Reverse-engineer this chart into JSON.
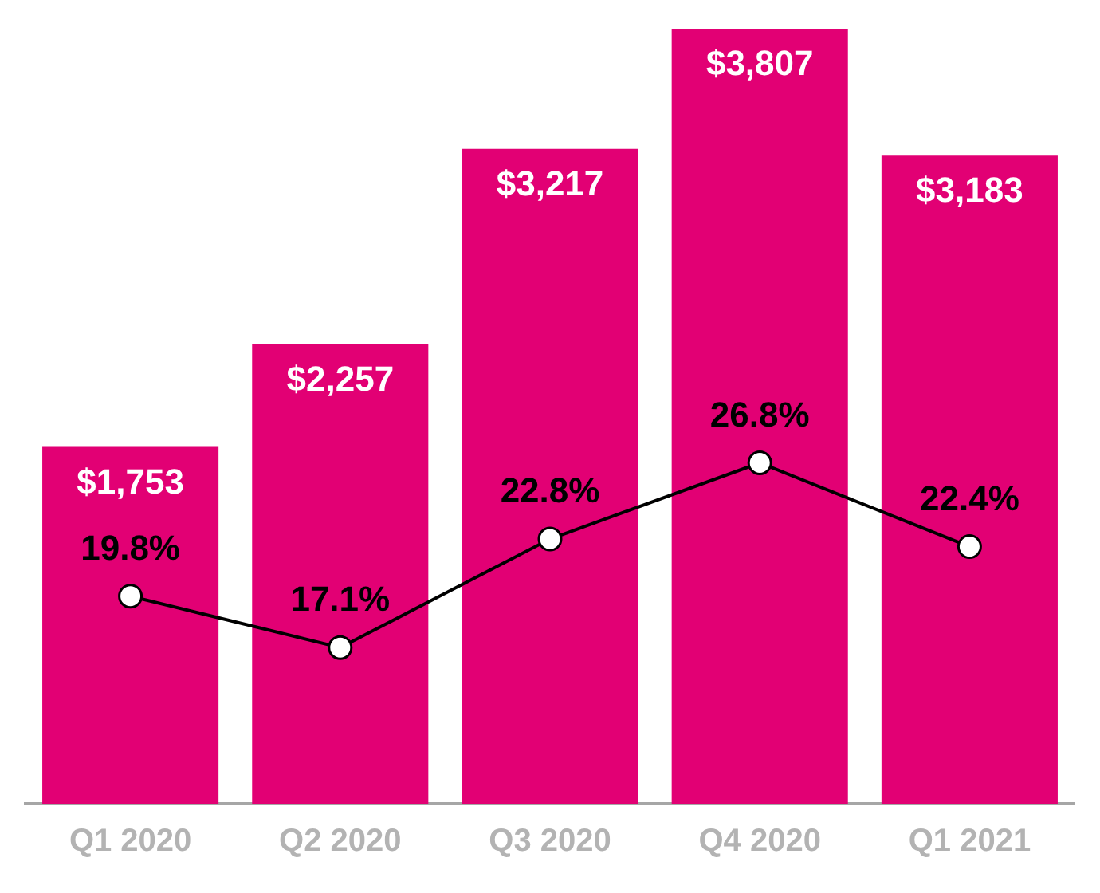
{
  "chart_data": {
    "type": "bar",
    "categories": [
      "Q1 2020",
      "Q2 2020",
      "Q3 2020",
      "Q4 2020",
      "Q1 2021"
    ],
    "series": [
      {
        "color": "#e20074",
        "values": [
          1753,
          2257,
          3217,
          3807,
          3183
        ],
        "value_labels": [
          "$1,753",
          "$2,257",
          "$3,217",
          "$3,807",
          "$3,183"
        ]
      },
      {
        "type": "line",
        "axis": "y2",
        "color": "#000000",
        "values": [
          19.8,
          17.1,
          22.8,
          26.8,
          22.4
        ],
        "value_labels": [
          "19.8%",
          "17.1%",
          "22.8%",
          "26.8%",
          "22.4%"
        ]
      }
    ],
    "ylim": [
      0,
      3807
    ],
    "y2lim": [
      8.9,
      49.6
    ],
    "tick_labels": "x",
    "marker": "circle",
    "line_style": "solid",
    "grid": false,
    "legend": false
  }
}
